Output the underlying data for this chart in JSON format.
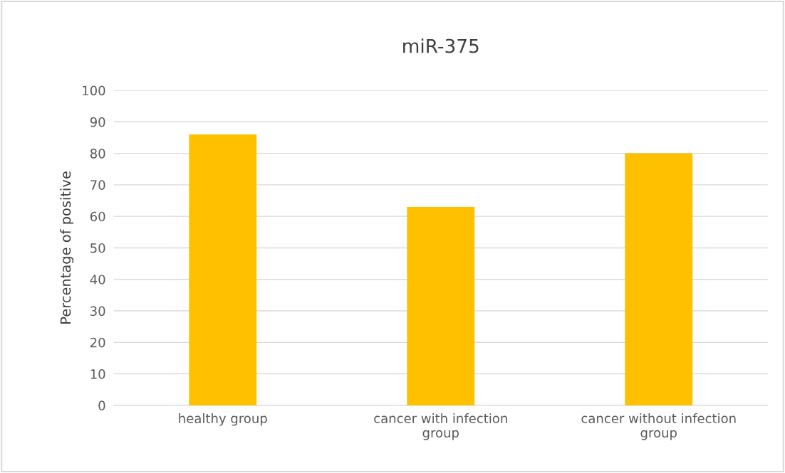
{
  "chart_data": {
    "type": "bar",
    "title": "miR-375",
    "ylabel": "Percentage of positive",
    "categories": [
      "healthy group",
      "cancer with infection\ngroup",
      "cancer without infection\ngroup"
    ],
    "values": [
      86,
      63,
      80
    ],
    "color": "#ffc000",
    "ylim": [
      0,
      100
    ],
    "yticks": [
      0,
      10,
      20,
      30,
      40,
      50,
      60,
      70,
      80,
      90,
      100
    ],
    "grid": "y",
    "legend": false
  }
}
